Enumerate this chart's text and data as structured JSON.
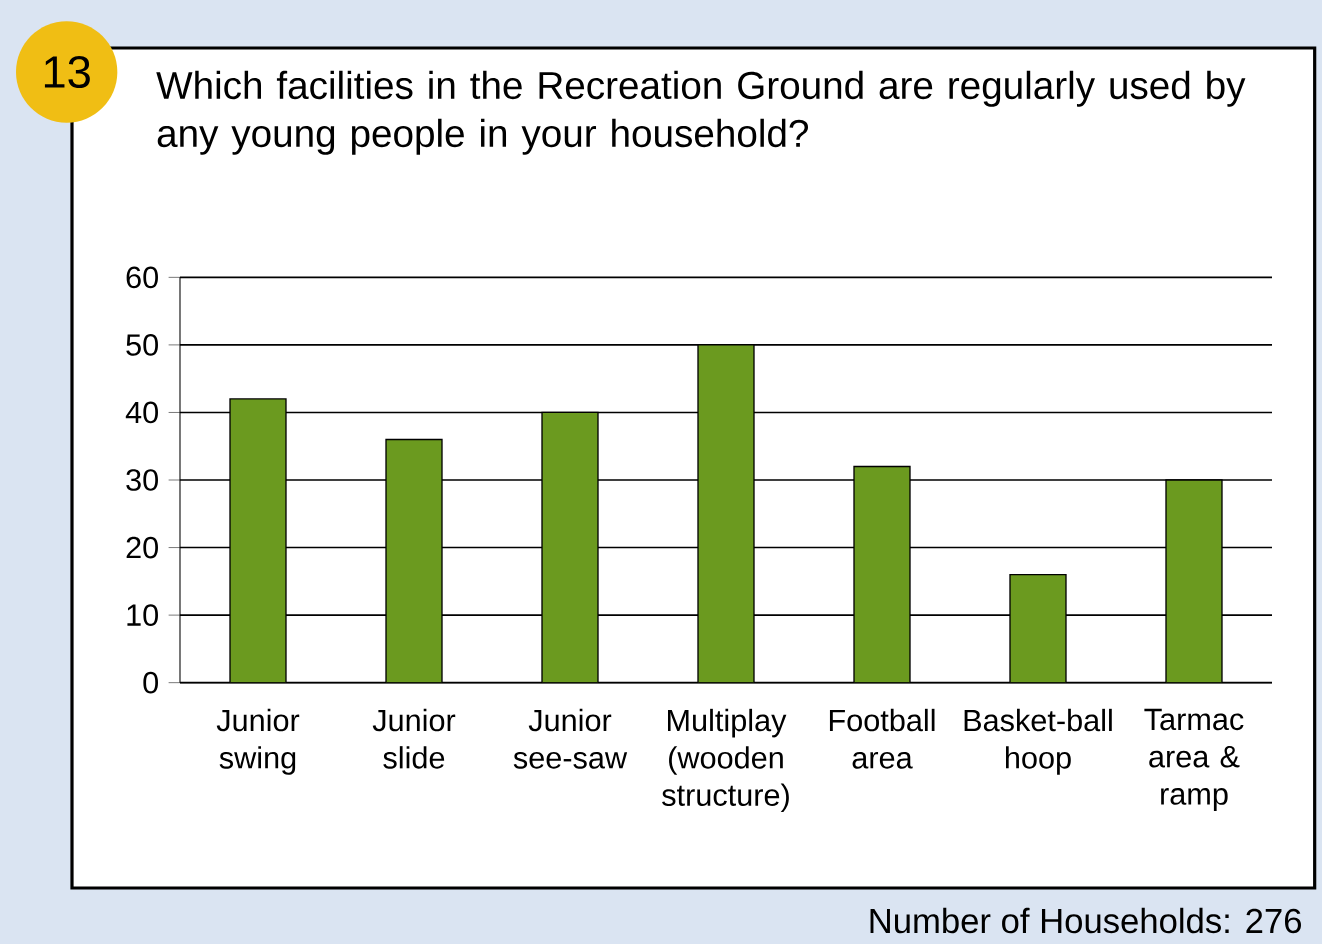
{
  "chart_data": {
    "type": "bar",
    "title": "Which facilities in the Recreation Ground are regularly used by any young people in your household?",
    "categories": [
      "Junior swing",
      "Junior slide",
      "Junior see-saw",
      "Multiplay (wooden structure)",
      "Football area",
      "Basket-ball hoop",
      "Tarmac area & ramp"
    ],
    "values": [
      42,
      36,
      40,
      50,
      32,
      16,
      30
    ],
    "color": "#6b9a1f",
    "ylim": [
      0,
      60
    ],
    "yticks": [
      0,
      10,
      20,
      30,
      40,
      50,
      60
    ],
    "grid": "y",
    "annotations": [
      "13",
      "Number of Households: 276"
    ]
  }
}
